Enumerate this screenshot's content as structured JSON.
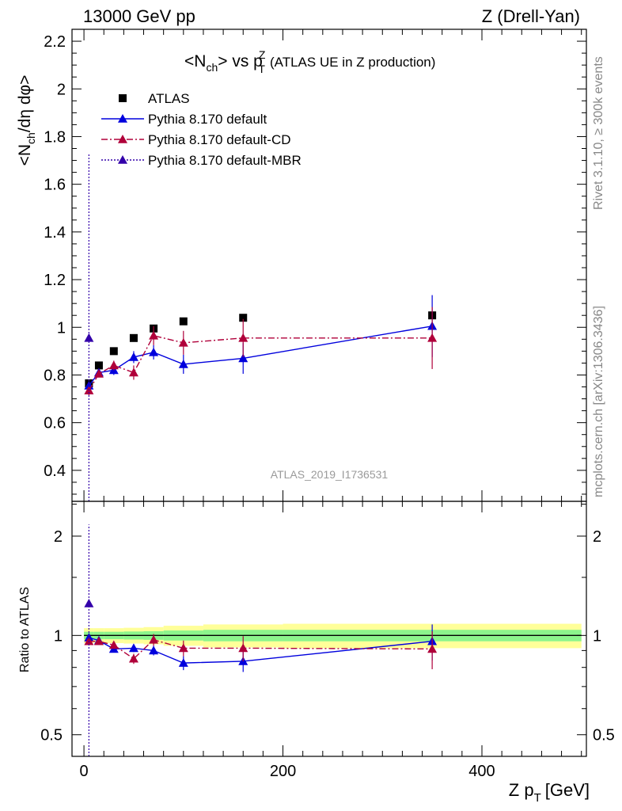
{
  "header": {
    "left": "13000 GeV pp",
    "right": "Z (Drell-Yan)"
  },
  "side_text": {
    "rivet": "Rivet 3.1.10, ≥ 300k events",
    "mcplots": "mcplots.cern.ch [arXiv:1306.3436]"
  },
  "watermark": "ATLAS_2019_I1736531",
  "colors": {
    "atlas": "#000000",
    "default": "#0000dd",
    "cd": "#b0003a",
    "mbr": "#3300aa",
    "band_inner": "#8cf58c",
    "band_outer": "#ffff99"
  },
  "chart_data": [
    {
      "type": "scatter",
      "panel": "main",
      "title_main": "<N",
      "title_main_sub": "ch",
      "title_mid": "> vs p",
      "title_sup": "Z",
      "title_sub": "T",
      "title_rest": "(ATLAS UE in Z production)",
      "ylabel": "<N",
      "ylabel_sub": "ch",
      "ylabel_rest": "/dη dφ>",
      "ylim": [
        0.27,
        2.25
      ],
      "xlim": [
        -12,
        505
      ],
      "y_ticks": [
        "0.4",
        "0.6",
        "0.8",
        "1",
        "1.2",
        "1.4",
        "1.6",
        "1.8",
        "2",
        "2.2"
      ],
      "y_tick_values": [
        0.4,
        0.6,
        0.8,
        1.0,
        1.2,
        1.4,
        1.6,
        1.8,
        2.0,
        2.2
      ],
      "legend_position": "top-left",
      "series": [
        {
          "name": "ATLAS",
          "style": "square-markers",
          "x": [
            5,
            15,
            30,
            50,
            70,
            100,
            160,
            350
          ],
          "y": [
            0.765,
            0.84,
            0.9,
            0.955,
            0.995,
            1.025,
            1.04,
            1.05
          ]
        },
        {
          "name": "Pythia 8.170 default",
          "style": "solid",
          "x": [
            5,
            15,
            30,
            50,
            70,
            100,
            160,
            350
          ],
          "y": [
            0.755,
            0.81,
            0.82,
            0.875,
            0.895,
            0.845,
            0.87,
            1.005
          ],
          "err": [
            0.012,
            0.012,
            0.02,
            0.025,
            0.03,
            0.04,
            0.065,
            0.13
          ]
        },
        {
          "name": "Pythia 8.170 default-CD",
          "style": "dash-dot",
          "x": [
            5,
            15,
            30,
            50,
            70,
            100,
            160,
            350
          ],
          "y": [
            0.735,
            0.805,
            0.84,
            0.81,
            0.965,
            0.935,
            0.955,
            0.955
          ],
          "err": [
            0.02,
            0.015,
            0.02,
            0.03,
            0.04,
            0.05,
            0.08,
            0.13
          ]
        },
        {
          "name": "Pythia 8.170 default-MBR",
          "style": "dotted",
          "x": [
            5
          ],
          "y": [
            0.955
          ],
          "err_low": [
            0.7
          ],
          "err_high": [
            0.77
          ]
        }
      ]
    },
    {
      "type": "scatter",
      "panel": "ratio",
      "ylabel": "Ratio to ATLAS",
      "xlabel": "Z p",
      "xlabel_sub": "T",
      "xlabel_rest": "[GeV]",
      "log_y": true,
      "ylim": [
        0.43,
        2.55
      ],
      "x_ticks": [
        "0",
        "200",
        "400"
      ],
      "x_tick_values": [
        0,
        200,
        400
      ],
      "y_ticks": [
        "0.5",
        "1",
        "2"
      ],
      "y_tick_values": [
        0.5,
        1,
        2
      ],
      "bands": {
        "edges": [
          0,
          10,
          20,
          40,
          60,
          80,
          120,
          200,
          500
        ],
        "inner_half_width": [
          0.026,
          0.026,
          0.026,
          0.028,
          0.03,
          0.035,
          0.04,
          0.04
        ],
        "outer_half_width": [
          0.052,
          0.052,
          0.052,
          0.055,
          0.06,
          0.07,
          0.08,
          0.085
        ]
      },
      "series": [
        {
          "name": "Pythia 8.170 default",
          "x": [
            5,
            15,
            30,
            50,
            70,
            100,
            160,
            350
          ],
          "y": [
            0.985,
            0.965,
            0.91,
            0.915,
            0.9,
            0.825,
            0.835,
            0.96
          ],
          "err": [
            0.015,
            0.015,
            0.022,
            0.025,
            0.03,
            0.04,
            0.06,
            0.12
          ]
        },
        {
          "name": "Pythia 8.170 default-CD",
          "x": [
            5,
            15,
            30,
            50,
            70,
            100,
            160,
            350
          ],
          "y": [
            0.96,
            0.96,
            0.935,
            0.85,
            0.97,
            0.915,
            0.915,
            0.91
          ],
          "err": [
            0.02,
            0.016,
            0.022,
            0.03,
            0.04,
            0.05,
            0.08,
            0.12
          ]
        },
        {
          "name": "Pythia 8.170 default-MBR",
          "x": [
            5
          ],
          "y": [
            1.25
          ],
          "err_low": [
            0.85
          ],
          "err_high": [
            0.92
          ]
        }
      ]
    }
  ]
}
